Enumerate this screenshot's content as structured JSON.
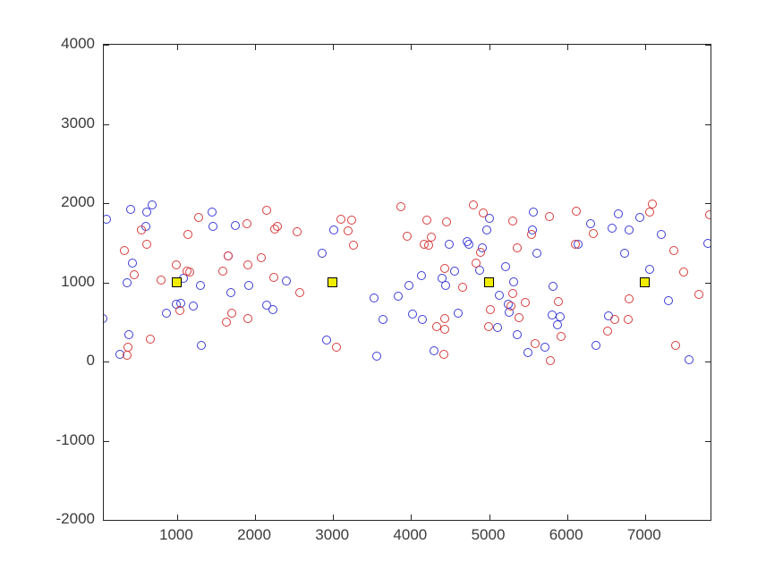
{
  "figure": {
    "background": "#ffffff",
    "axis_color": "#262626",
    "tick_label_color": "#3b3b3b"
  },
  "chart_data": {
    "type": "scatter",
    "title": "",
    "xlabel": "",
    "ylabel": "",
    "xlim": [
      60,
      7840
    ],
    "ylim": [
      -2000,
      4000
    ],
    "grid": false,
    "legend": null,
    "x_ticks": [
      1000,
      2000,
      3000,
      4000,
      5000,
      6000,
      7000
    ],
    "x_tick_labels": [
      "1000",
      "2000",
      "3000",
      "4000",
      "5000",
      "6000",
      "7000"
    ],
    "y_ticks": [
      -2000,
      -1000,
      0,
      1000,
      2000,
      3000,
      4000
    ],
    "y_tick_labels": [
      "-2000",
      "-1000",
      "0",
      "1000",
      "2000",
      "3000",
      "4000"
    ],
    "series": [
      {
        "name": "blue-circles",
        "marker": "circle",
        "color": "#3c3cd6",
        "points": [
          [
            100,
            1790
          ],
          [
            410,
            1920
          ],
          [
            620,
            1880
          ],
          [
            680,
            1970
          ],
          [
            600,
            1700
          ],
          [
            1450,
            1880
          ],
          [
            1460,
            1700
          ],
          [
            1750,
            1710
          ],
          [
            430,
            1240
          ],
          [
            360,
            985
          ],
          [
            1090,
            1040
          ],
          [
            1300,
            960
          ],
          [
            1700,
            870
          ],
          [
            1930,
            960
          ],
          [
            1050,
            730
          ],
          [
            1000,
            720
          ],
          [
            1210,
            700
          ],
          [
            870,
            600
          ],
          [
            50,
            540
          ],
          [
            385,
            330
          ],
          [
            1320,
            200
          ],
          [
            270,
            80
          ],
          [
            1662,
            1332
          ],
          [
            3010,
            1660
          ],
          [
            2870,
            1360
          ],
          [
            2410,
            1010
          ],
          [
            2150,
            710
          ],
          [
            2240,
            650
          ],
          [
            3530,
            800
          ],
          [
            3840,
            815
          ],
          [
            3975,
            955
          ],
          [
            3650,
            530
          ],
          [
            2920,
            260
          ],
          [
            3570,
            60
          ],
          [
            4500,
            1480
          ],
          [
            5010,
            1800
          ],
          [
            4980,
            1660
          ],
          [
            4730,
            1510
          ],
          [
            4750,
            1480
          ],
          [
            4920,
            1430
          ],
          [
            4890,
            1150
          ],
          [
            4560,
            1140
          ],
          [
            4140,
            1075
          ],
          [
            4400,
            1050
          ],
          [
            4450,
            960
          ],
          [
            5220,
            1190
          ],
          [
            5320,
            1000
          ],
          [
            5140,
            830
          ],
          [
            5250,
            720
          ],
          [
            5260,
            620
          ],
          [
            5110,
            420
          ],
          [
            5370,
            335
          ],
          [
            4300,
            130
          ],
          [
            4030,
            590
          ],
          [
            4150,
            530
          ],
          [
            4610,
            600
          ],
          [
            5500,
            110
          ],
          [
            5720,
            180
          ],
          [
            5570,
            1880
          ],
          [
            5560,
            1660
          ],
          [
            5620,
            1360
          ],
          [
            5820,
            580
          ],
          [
            5920,
            560
          ],
          [
            5880,
            460
          ],
          [
            5830,
            940
          ],
          [
            6310,
            1740
          ],
          [
            6150,
            1470
          ],
          [
            6660,
            1860
          ],
          [
            6580,
            1680
          ],
          [
            6800,
            1650
          ],
          [
            6940,
            1810
          ],
          [
            7210,
            1600
          ],
          [
            6740,
            1360
          ],
          [
            7060,
            1160
          ],
          [
            7310,
            760
          ],
          [
            6540,
            570
          ],
          [
            6380,
            200
          ],
          [
            7570,
            20
          ],
          [
            7810,
            1490
          ]
        ]
      },
      {
        "name": "red-circles",
        "marker": "circle",
        "color": "#d63c3c",
        "points": [
          [
            1280,
            1810
          ],
          [
            1900,
            1730
          ],
          [
            1150,
            1600
          ],
          [
            620,
            1470
          ],
          [
            335,
            1400
          ],
          [
            550,
            1650
          ],
          [
            1660,
            1330
          ],
          [
            1000,
            1210
          ],
          [
            1130,
            1140
          ],
          [
            1165,
            1120
          ],
          [
            460,
            1090
          ],
          [
            800,
            1020
          ],
          [
            1590,
            1130
          ],
          [
            1915,
            1220
          ],
          [
            1040,
            640
          ],
          [
            1710,
            610
          ],
          [
            1640,
            490
          ],
          [
            1915,
            540
          ],
          [
            660,
            280
          ],
          [
            370,
            180
          ],
          [
            365,
            70
          ],
          [
            2150,
            1900
          ],
          [
            2260,
            1670
          ],
          [
            2290,
            1700
          ],
          [
            2550,
            1630
          ],
          [
            3110,
            1790
          ],
          [
            3240,
            1780
          ],
          [
            3200,
            1640
          ],
          [
            3270,
            1460
          ],
          [
            3880,
            1945
          ],
          [
            3960,
            1575
          ],
          [
            2080,
            1300
          ],
          [
            2250,
            1060
          ],
          [
            2580,
            870
          ],
          [
            3050,
            170
          ],
          [
            4210,
            1780
          ],
          [
            4460,
            1760
          ],
          [
            4270,
            1570
          ],
          [
            4170,
            1480
          ],
          [
            4230,
            1460
          ],
          [
            4810,
            1970
          ],
          [
            4930,
            1870
          ],
          [
            4900,
            1370
          ],
          [
            4840,
            1240
          ],
          [
            4440,
            1170
          ],
          [
            4670,
            930
          ],
          [
            5310,
            1770
          ],
          [
            5780,
            1830
          ],
          [
            5550,
            1600
          ],
          [
            5370,
            1430
          ],
          [
            5310,
            850
          ],
          [
            5290,
            700
          ],
          [
            5020,
            650
          ],
          [
            5465,
            740
          ],
          [
            5390,
            550
          ],
          [
            5000,
            430
          ],
          [
            4340,
            430
          ],
          [
            4440,
            400
          ],
          [
            4440,
            540
          ],
          [
            4430,
            80
          ],
          [
            5600,
            215
          ],
          [
            5795,
            10
          ],
          [
            5925,
            315
          ],
          [
            5900,
            755
          ],
          [
            6130,
            1890
          ],
          [
            6340,
            1610
          ],
          [
            6110,
            1480
          ],
          [
            7060,
            1880
          ],
          [
            7100,
            1980
          ],
          [
            7380,
            1400
          ],
          [
            7500,
            1120
          ],
          [
            7700,
            840
          ],
          [
            6800,
            790
          ],
          [
            6620,
            530
          ],
          [
            6790,
            530
          ],
          [
            6530,
            380
          ],
          [
            7400,
            200
          ],
          [
            7830,
            1850
          ]
        ]
      },
      {
        "name": "yellow-square-centers",
        "marker": "square",
        "color": "#f0ed00",
        "edge_color": "#000000",
        "points": [
          [
            1000,
            1000
          ],
          [
            3000,
            1000
          ],
          [
            5000,
            1000
          ],
          [
            7000,
            1000
          ]
        ]
      }
    ]
  }
}
